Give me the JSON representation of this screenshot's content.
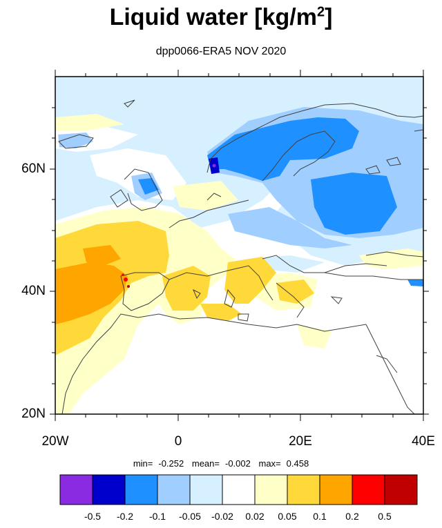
{
  "title": {
    "main": "Liquid water  [kg/m",
    "sup": "2",
    "close": "]"
  },
  "subtitle": "dpp0066-ERA5 NOV 2020",
  "axes": {
    "y_ticks": [
      "60N",
      "40N",
      "20N"
    ],
    "x_ticks": [
      "20W",
      "0",
      "20E",
      "40E"
    ]
  },
  "stats": {
    "min_label": "min=",
    "min": "-0.252",
    "mean_label": "mean=",
    "mean": "-0.002",
    "max_label": "max=",
    "max": "0.458"
  },
  "colorbar": {
    "colors": [
      "#8a2be2",
      "#0000cd",
      "#1e90ff",
      "#a0cfff",
      "#d6f0ff",
      "#ffffff",
      "#ffffc8",
      "#ffd83a",
      "#ffa500",
      "#ff0000",
      "#c00000"
    ],
    "labels": [
      "-0.5",
      "-0.2",
      "-0.1",
      "-0.05",
      "-0.02",
      "0.02",
      "0.05",
      "0.1",
      "0.2",
      "0.5"
    ]
  }
}
